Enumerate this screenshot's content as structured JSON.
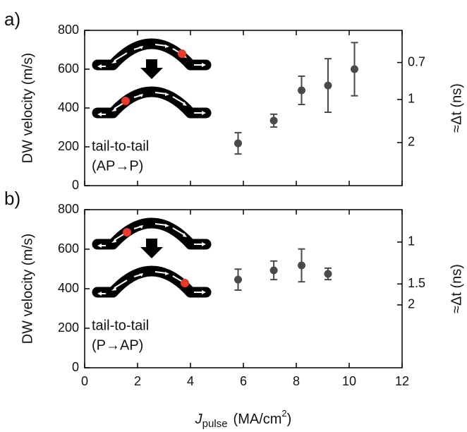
{
  "chart_data": [
    {
      "type": "scatter",
      "panel_label": "a)",
      "ylabel": "DW velocity (m/s)",
      "y2label": "≈Δt (ns)",
      "annotations": [
        "tail-to-tail",
        "(AP→P)"
      ],
      "x": [
        5.8,
        7.15,
        8.2,
        9.2,
        10.2
      ],
      "series": [
        {
          "color": "#4a4a4a",
          "values": [
            218,
            335,
            491,
            516,
            600
          ],
          "errors": [
            55,
            33,
            73,
            138,
            137
          ]
        }
      ],
      "xlim": [
        0,
        12
      ],
      "xticks": [
        0,
        2,
        4,
        6,
        8,
        10,
        12
      ],
      "xtick_labels": false,
      "ylim": [
        0,
        800
      ],
      "yticks": [
        0,
        200,
        400,
        600,
        800
      ],
      "y2scale": "reciprocal",
      "y2ref": 444,
      "y2ticks": [
        0.7,
        1,
        2
      ]
    },
    {
      "type": "scatter",
      "panel_label": "b)",
      "ylabel": "DW velocity (m/s)",
      "y2label": "≈Δt (ns)",
      "annotations": [
        "tail-to-tail",
        "(P→AP)"
      ],
      "xlabel": {
        "symbol": "J",
        "subscript": "pulse",
        "unit": "(MA/cm",
        "superscript": "2",
        "close": ")"
      },
      "x": [
        5.8,
        7.15,
        8.2,
        9.2
      ],
      "series": [
        {
          "color": "#4a4a4a",
          "values": [
            446,
            493,
            518,
            475
          ],
          "errors": [
            53,
            47,
            83,
            29
          ]
        }
      ],
      "xlim": [
        0,
        12
      ],
      "xticks": [
        0,
        2,
        4,
        6,
        8,
        10,
        12
      ],
      "xtick_labels": true,
      "ylim": [
        0,
        800
      ],
      "yticks": [
        0,
        200,
        400,
        600,
        800
      ],
      "y2scale": "reciprocal",
      "y2ref": 636,
      "y2ticks": [
        1,
        1.5,
        2
      ]
    }
  ]
}
